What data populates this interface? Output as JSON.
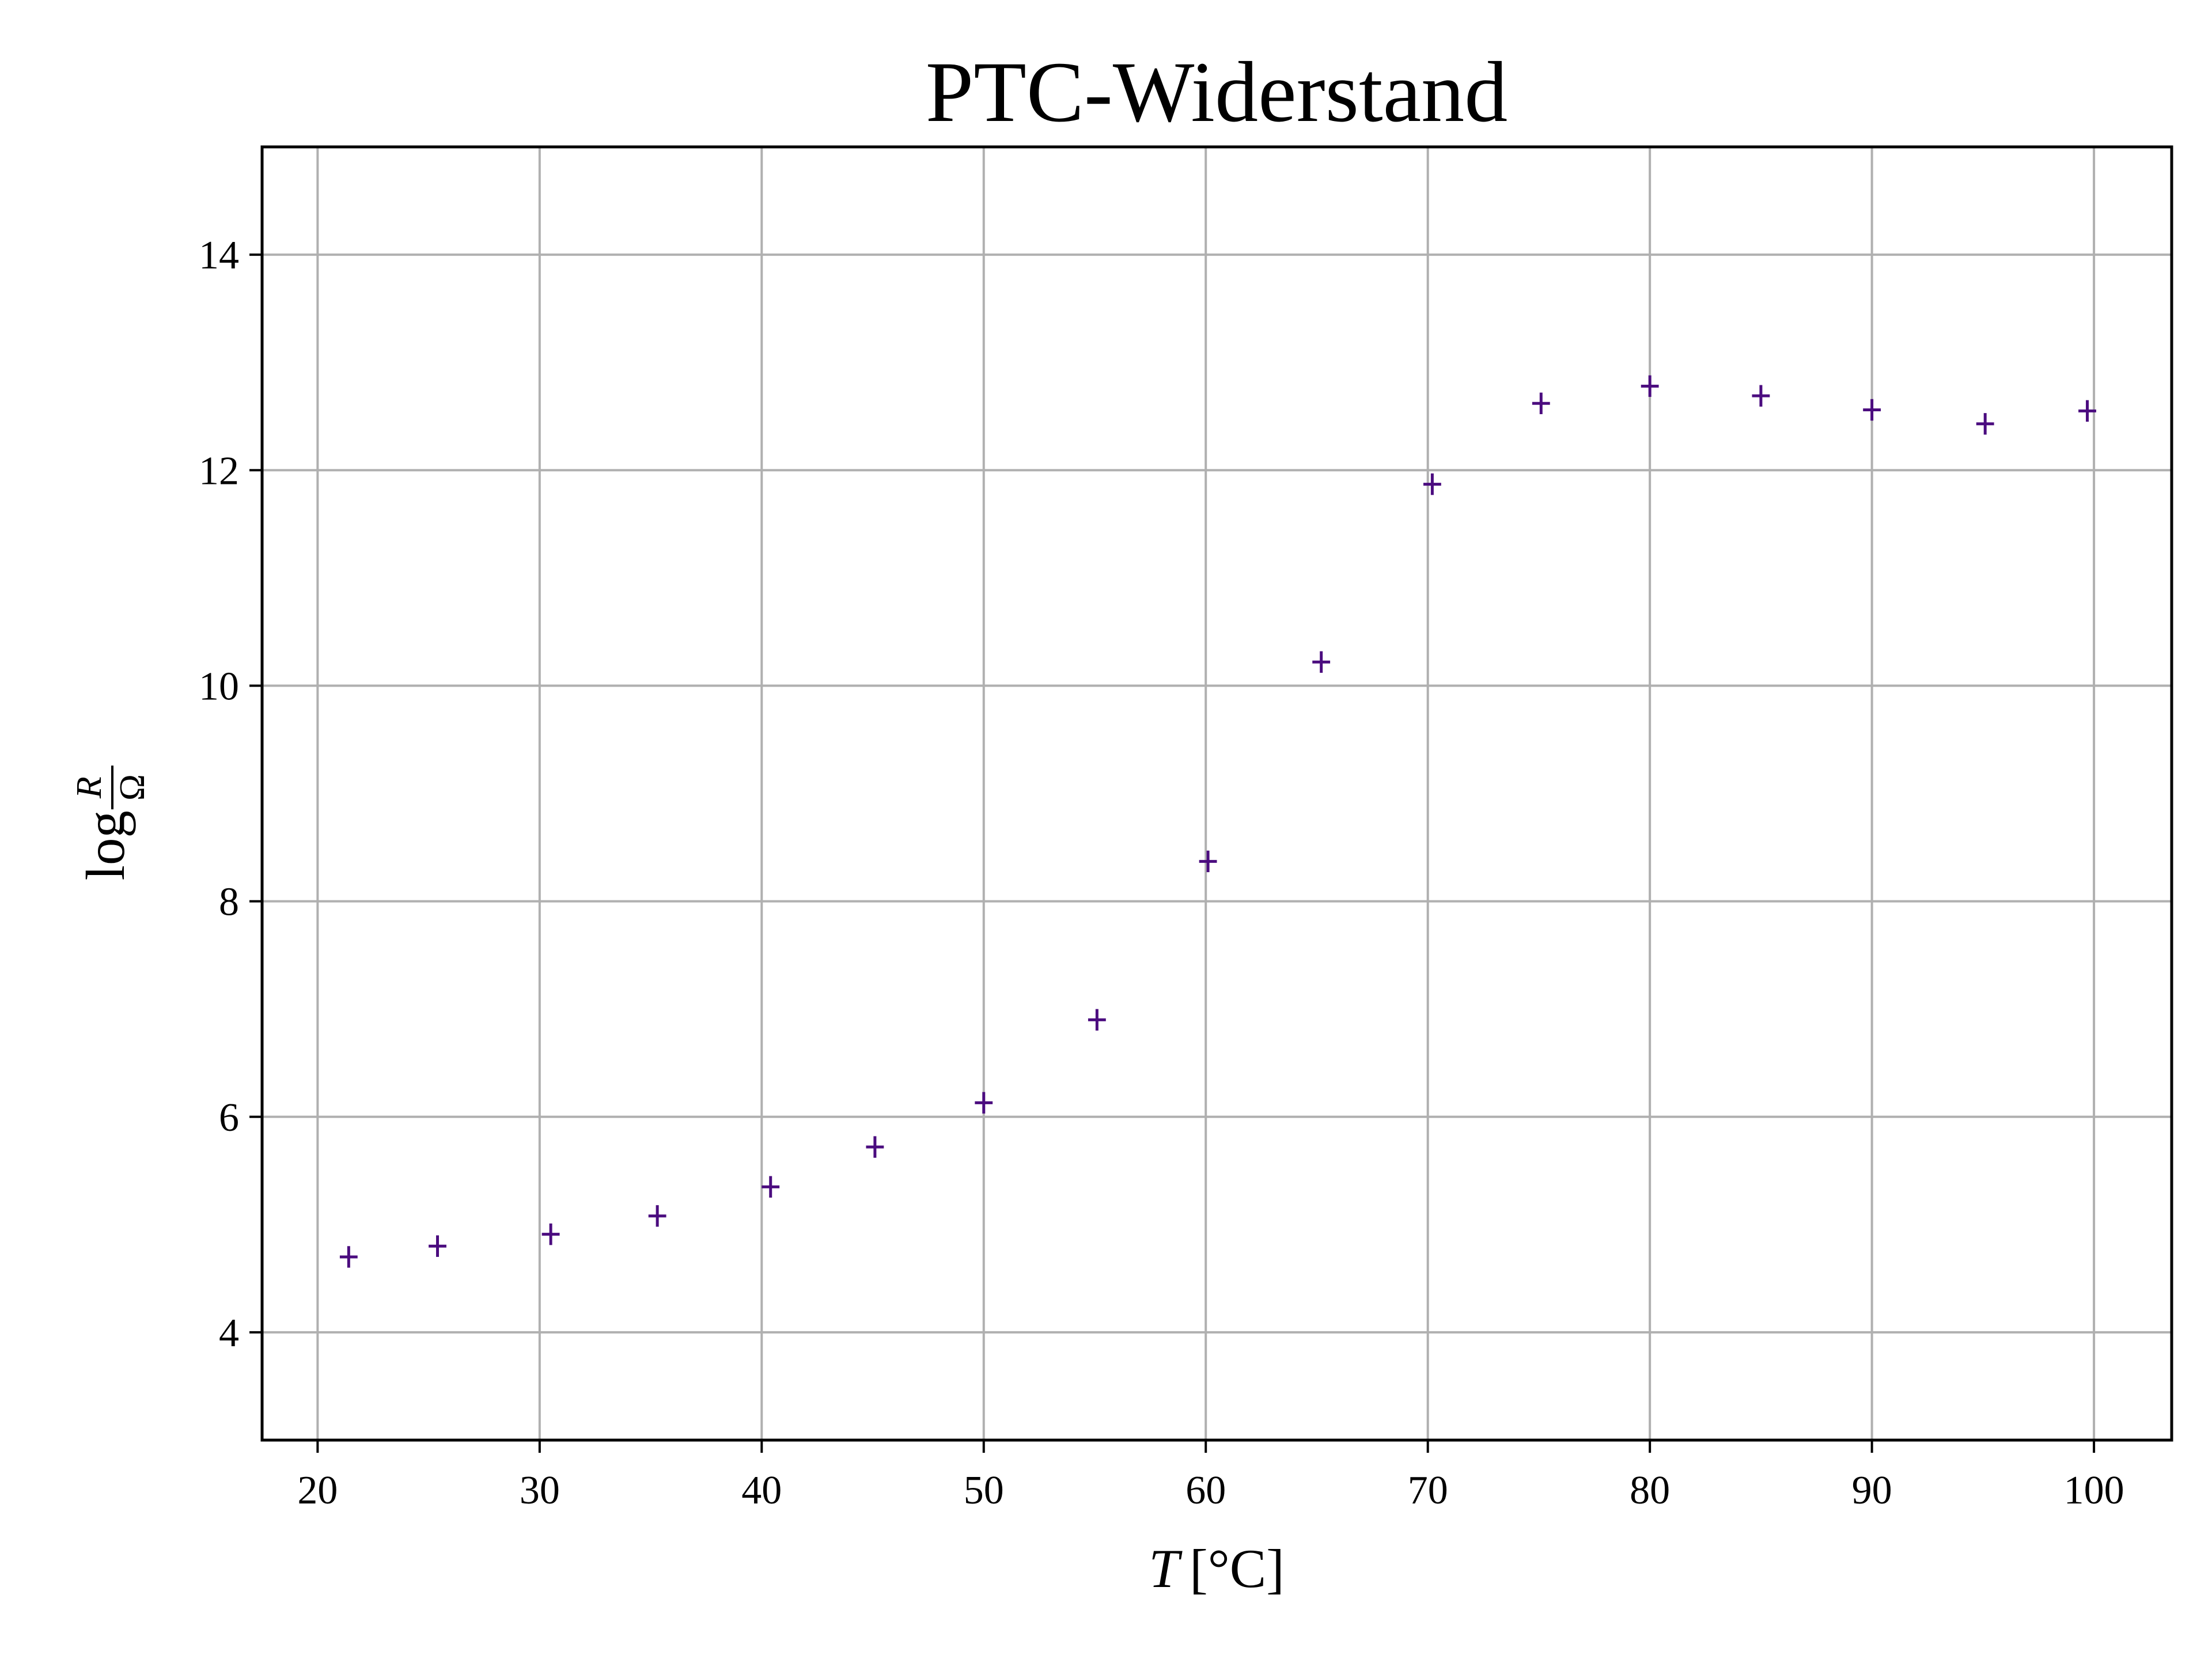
{
  "chart_data": {
    "type": "scatter",
    "title": "PTC-Widerstand",
    "xlabel_var": "T",
    "xlabel_unit": "[°C]",
    "ylabel_log": "log",
    "ylabel_num": "R",
    "ylabel_den": "Ω",
    "xlim": [
      17.5,
      103.5
    ],
    "ylim": [
      3,
      15
    ],
    "xticks": [
      20,
      30,
      40,
      50,
      60,
      70,
      80,
      90,
      100
    ],
    "yticks": [
      4,
      6,
      8,
      10,
      12,
      14
    ],
    "grid": true,
    "marker": "errorbar",
    "color": "#4b0c7f",
    "x": [
      21.4,
      25.4,
      30.5,
      35.3,
      40.4,
      45.1,
      50.0,
      55.1,
      60.1,
      65.2,
      70.2,
      75.1,
      80.0,
      85.0,
      90.0,
      95.1,
      99.7
    ],
    "y": [
      4.7,
      4.8,
      4.91,
      5.08,
      5.35,
      5.72,
      6.13,
      6.9,
      8.37,
      10.22,
      11.87,
      12.62,
      12.78,
      12.69,
      12.56,
      12.43,
      12.55
    ],
    "xerr": 0.4,
    "yerr": 0.1
  }
}
